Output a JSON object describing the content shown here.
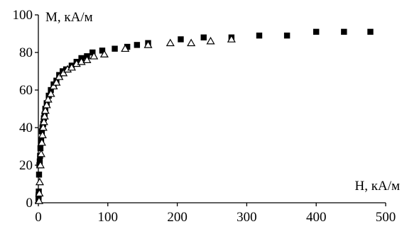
{
  "chart_data": {
    "type": "scatter",
    "ylabel": "M, кА/м",
    "xlabel": "H, кА/м",
    "xlim": [
      0,
      500
    ],
    "ylim": [
      0,
      100
    ],
    "xticks": [
      0,
      100,
      200,
      300,
      400,
      500
    ],
    "yticks": [
      0,
      20,
      40,
      60,
      80,
      100
    ],
    "grid": false,
    "series": [
      {
        "marker": "filled-square",
        "color": "#000000",
        "points": [
          [
            0.2,
            2
          ],
          [
            0.3,
            3
          ],
          [
            0.4,
            4
          ],
          [
            0.6,
            6
          ],
          [
            1,
            15
          ],
          [
            1.5,
            20
          ],
          [
            2,
            22
          ],
          [
            2.5,
            25
          ],
          [
            3,
            29
          ],
          [
            4,
            33
          ],
          [
            5,
            38
          ],
          [
            6,
            40
          ],
          [
            7,
            42
          ],
          [
            8,
            45
          ],
          [
            9,
            47
          ],
          [
            10,
            50
          ],
          [
            12,
            53
          ],
          [
            15,
            57
          ],
          [
            18,
            60
          ],
          [
            22,
            63
          ],
          [
            26,
            65
          ],
          [
            30,
            68
          ],
          [
            35,
            70
          ],
          [
            40,
            71
          ],
          [
            48,
            73
          ],
          [
            55,
            75
          ],
          [
            62,
            77
          ],
          [
            70,
            78
          ],
          [
            78,
            80
          ],
          [
            92,
            81
          ],
          [
            110,
            82
          ],
          [
            128,
            83
          ],
          [
            142,
            84
          ],
          [
            158,
            85
          ],
          [
            205,
            87
          ],
          [
            238,
            88
          ],
          [
            278,
            88
          ],
          [
            318,
            89
          ],
          [
            358,
            89
          ],
          [
            400,
            91
          ],
          [
            440,
            91
          ],
          [
            478,
            91
          ]
        ]
      },
      {
        "marker": "open-triangle",
        "color": "#000000",
        "points": [
          [
            1,
            1
          ],
          [
            1.5,
            5
          ],
          [
            2,
            11
          ],
          [
            3,
            20
          ],
          [
            4,
            26
          ],
          [
            5,
            32
          ],
          [
            6,
            36
          ],
          [
            7,
            40
          ],
          [
            8,
            43
          ],
          [
            9,
            46
          ],
          [
            10,
            49
          ],
          [
            12,
            52
          ],
          [
            14,
            55
          ],
          [
            18,
            58
          ],
          [
            22,
            62
          ],
          [
            26,
            64
          ],
          [
            30,
            67
          ],
          [
            36,
            69
          ],
          [
            42,
            71
          ],
          [
            48,
            72
          ],
          [
            55,
            74
          ],
          [
            62,
            75
          ],
          [
            70,
            76
          ],
          [
            80,
            78
          ],
          [
            95,
            79
          ],
          [
            125,
            82
          ],
          [
            158,
            84
          ],
          [
            190,
            85
          ],
          [
            220,
            85
          ],
          [
            248,
            86
          ],
          [
            278,
            87
          ]
        ]
      }
    ]
  }
}
